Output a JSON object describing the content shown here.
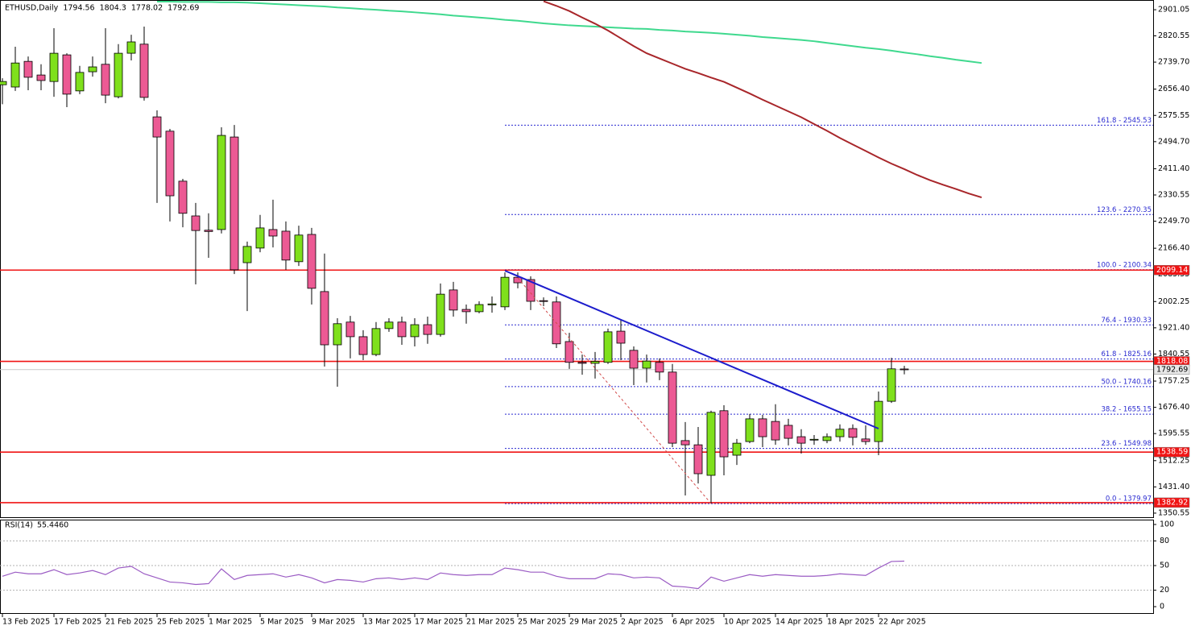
{
  "chart_data": [
    {
      "type": "candlestick",
      "title": "ETHUSD,Daily",
      "categories": [
        "13 Feb 2025",
        null,
        null,
        null,
        "17 Feb 2025",
        null,
        null,
        null,
        "21 Feb 2025",
        null,
        null,
        null,
        "25 Feb 2025",
        null,
        null,
        null,
        "1 Mar 2025",
        null,
        null,
        null,
        "5 Mar 2025",
        null,
        null,
        null,
        "9 Mar 2025",
        null,
        null,
        null,
        "13 Mar 2025",
        null,
        null,
        null,
        "17 Mar 2025",
        null,
        null,
        null,
        "21 Mar 2025",
        null,
        null,
        null,
        "25 Mar 2025",
        null,
        null,
        null,
        "29 Mar 2025",
        null,
        null,
        null,
        "2 Apr 2025",
        null,
        null,
        null,
        "6 Apr 2025",
        null,
        null,
        null,
        "10 Apr 2025",
        null,
        null,
        null,
        "14 Apr 2025",
        null,
        null,
        null,
        "18 Apr 2025",
        null,
        null,
        null,
        "22 Apr 2025",
        null,
        null
      ],
      "open": [
        2670,
        2663,
        2742,
        2700,
        2680,
        2762,
        2651,
        2710,
        2733,
        2633,
        2767,
        2795,
        2571,
        2527,
        2373,
        2266,
        2222,
        2224,
        2509,
        2122,
        2167,
        2224,
        2219,
        2125,
        2209,
        2033,
        1869,
        1939,
        1894,
        1839,
        1919,
        1939,
        1894,
        1931,
        1901,
        2038,
        1978,
        1971,
        1992,
        1986,
        2077,
        2070,
        2005,
        2001,
        1879,
        1815,
        1812,
        1815,
        1911,
        1852,
        1797,
        1815,
        1785,
        1574,
        1561,
        1467,
        1666,
        1529,
        1571,
        1641,
        1633,
        1621,
        1586,
        1576,
        1574,
        1586,
        1611,
        1579,
        1571,
        1695,
        1794.56
      ],
      "high": [
        2690,
        2787,
        2757,
        2733,
        2844,
        2767,
        2728,
        2757,
        2844,
        2795,
        2824,
        2849,
        2591,
        2534,
        2380,
        2306,
        2274,
        2539,
        2546,
        2187,
        2269,
        2316,
        2249,
        2236,
        2229,
        2150,
        1951,
        1958,
        1914,
        1939,
        1951,
        1956,
        1951,
        1956,
        2058,
        2063,
        1993,
        2003,
        2018,
        2092,
        2092,
        2080,
        2015,
        2018,
        1906,
        1839,
        1847,
        1919,
        1946,
        1864,
        1839,
        1827,
        1810,
        1631,
        1616,
        1666,
        1683,
        1579,
        1656,
        1653,
        1686,
        1641,
        1609,
        1591,
        1596,
        1624,
        1624,
        1621,
        1725,
        1829,
        1804.3
      ],
      "low": [
        2610,
        2651,
        2653,
        2653,
        2633,
        2601,
        2641,
        2695,
        2613,
        2628,
        2745,
        2621,
        2306,
        2249,
        2231,
        2055,
        2137,
        2212,
        2087,
        1973,
        2154,
        2169,
        2100,
        2112,
        1993,
        1802,
        1740,
        1827,
        1822,
        1834,
        1909,
        1869,
        1864,
        1872,
        1894,
        1956,
        1934,
        1966,
        1968,
        1976,
        2043,
        1976,
        1988,
        1859,
        1795,
        1777,
        1765,
        1810,
        1822,
        1745,
        1753,
        1760,
        1554,
        1405,
        1442,
        1380,
        1467,
        1499,
        1566,
        1554,
        1561,
        1559,
        1534,
        1561,
        1566,
        1571,
        1559,
        1561,
        1529,
        1690,
        1778.02
      ],
      "close": [
        2680,
        2737,
        2693,
        2683,
        2767,
        2641,
        2708,
        2725,
        2638,
        2767,
        2802,
        2631,
        2509,
        2328,
        2274,
        2221,
        2218,
        2514,
        2100,
        2172,
        2229,
        2204,
        2130,
        2207,
        2043,
        1869,
        1934,
        1894,
        1839,
        1919,
        1939,
        1894,
        1931,
        1901,
        2025,
        1976,
        1971,
        1993,
        1995,
        2077,
        2060,
        2003,
        2003,
        1872,
        1815,
        1812,
        1818,
        1909,
        1874,
        1797,
        1819,
        1785,
        1566,
        1561,
        1472,
        1661,
        1524,
        1566,
        1641,
        1586,
        1576,
        1581,
        1566,
        1578,
        1586,
        1609,
        1584,
        1571,
        1695,
        1795,
        1792.69
      ],
      "up_color": "#7fe01c",
      "down_color": "#ec5a94",
      "ylim": [
        1338,
        2931
      ],
      "yticks": [
        2901.05,
        2820.55,
        {
          "value": 2739.7,
          "label": "2739.70"
        },
        {
          "value": 2656.4,
          "label": "2656.40"
        },
        2575.55,
        {
          "value": 2494.7,
          "label": "2494.70"
        },
        {
          "value": 2411.4,
          "label": "2411.40"
        },
        2330.55,
        {
          "value": 2249.7,
          "label": "2249.70"
        },
        {
          "value": 2166.4,
          "label": "2166.40"
        },
        2085.55,
        2002.25,
        {
          "value": 1921.4,
          "label": "1921.40"
        },
        1840.55,
        1757.25,
        {
          "value": 1676.4,
          "label": "1676.40"
        },
        1595.55,
        1512.25,
        {
          "value": 1431.4,
          "label": "1431.40"
        },
        1350.55
      ],
      "overlays": [
        {
          "color": "#3fd98e",
          "shift": 6,
          "values": [
            null,
            null,
            null,
            null,
            null,
            null,
            2926,
            2926,
            2925,
            2925,
            2925,
            2924,
            2924,
            2923,
            2921,
            2919,
            2917,
            2915,
            2913,
            2911,
            2908,
            2906,
            2903,
            2901,
            2898,
            2896,
            2893,
            2890,
            2887,
            2883,
            2880,
            2877,
            2874,
            2870,
            2867,
            2863,
            2859,
            2856,
            2853,
            2851,
            2849,
            2847,
            2845,
            2843,
            2842,
            2839,
            2837,
            2834,
            2832,
            2830,
            2827,
            2824,
            2821,
            2817,
            2814,
            2811,
            2808,
            2804,
            2799,
            2794,
            2789,
            2784,
            2780,
            2775,
            2769,
            2764,
            2758,
            2753,
            2747,
            2742,
            2737
          ]
        },
        {
          "color": "#a8262a",
          "shift": 6,
          "values": [
            null,
            null,
            null,
            null,
            null,
            null,
            null,
            null,
            null,
            null,
            null,
            null,
            null,
            null,
            null,
            null,
            null,
            null,
            null,
            null,
            null,
            null,
            null,
            null,
            null,
            null,
            null,
            null,
            null,
            null,
            null,
            null,
            null,
            null,
            null,
            null,
            2927,
            2913,
            2897,
            2877,
            2858,
            2837,
            2813,
            2789,
            2767,
            2751,
            2735,
            2719,
            2706,
            2692,
            2679,
            2661,
            2643,
            2624,
            2606,
            2588,
            2570,
            2549,
            2528,
            2506,
            2486,
            2466,
            2446,
            2427,
            2410,
            2392,
            2376,
            2362,
            2349,
            2335,
            2323
          ]
        }
      ],
      "hlines": {
        "color": "#f01414",
        "values": [
          2099.14,
          1818.08,
          1538.59,
          1382.92
        ]
      },
      "fibonacci": {
        "color": "#2a2ad0",
        "levels": [
          {
            "value": 2545.53,
            "label": "161.8 - 2545.53"
          },
          {
            "value": 2270.35,
            "label": "123.6 - 2270.35"
          },
          {
            "value": 2100.34,
            "label": "100.0 - 2100.34"
          },
          {
            "value": 1930.33,
            "label": "76.4 - 1930.33"
          },
          {
            "value": 1825.16,
            "label": "61.8 - 1825.16"
          },
          {
            "value": 1740.16,
            "label": "50.0 - 1740.16"
          },
          {
            "value": 1655.15,
            "label": "38.2 - 1655.15"
          },
          {
            "value": 1549.98,
            "label": "23.6 - 1549.98"
          },
          {
            "value": 1379.97,
            "label": "0.0 - 1379.97"
          }
        ]
      }
    },
    {
      "type": "line",
      "title": "RSI(14)",
      "current": {
        "value": 55.446,
        "label": "55.4460"
      },
      "color": "#9b5cc4",
      "values": [
        37,
        42,
        40,
        40,
        45,
        39,
        41,
        44,
        39,
        47,
        49,
        40,
        35,
        30,
        29,
        27,
        28,
        46,
        33,
        38,
        39,
        40,
        36,
        39,
        35,
        29,
        33,
        32,
        30,
        34,
        35,
        33,
        35,
        33,
        41,
        39,
        38,
        39,
        39,
        47,
        45,
        42,
        42,
        37,
        34,
        34,
        34,
        40,
        39,
        35,
        36,
        35,
        25,
        24,
        22,
        36,
        31,
        35,
        39,
        37,
        39,
        38,
        37,
        37,
        38,
        40,
        39,
        38,
        47,
        55,
        55.446
      ],
      "ylim": [
        -8.8,
        105.9
      ],
      "yticks": [
        100,
        80,
        50,
        20,
        0
      ]
    }
  ]
}
